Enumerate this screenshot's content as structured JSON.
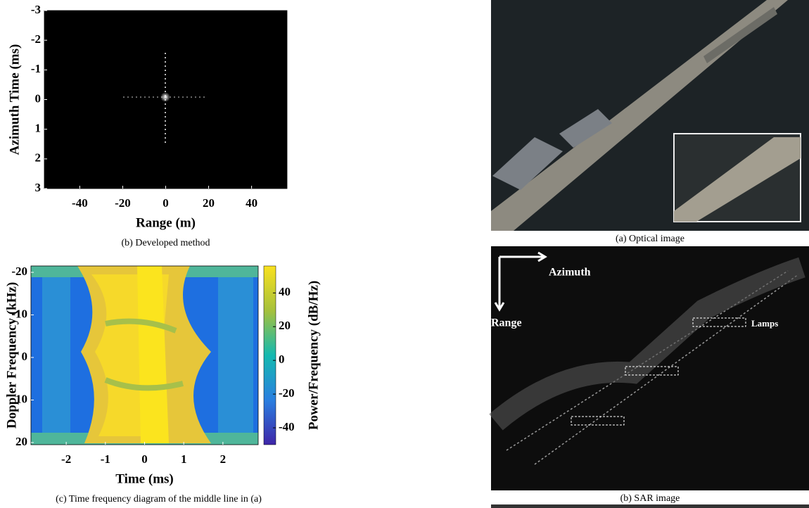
{
  "chart_data": [
    {
      "type": "image",
      "xlabel": "Range (m)",
      "ylabel": "Azimuth Time (ms)",
      "caption": "(b) Developed method",
      "xlim": [
        -56.5,
        56.5
      ],
      "xticks": [
        -40,
        -20,
        0,
        20,
        40
      ],
      "ylim": [
        -3,
        3
      ],
      "yticks": [
        -3,
        -2,
        -1,
        0,
        1,
        2,
        3
      ]
    },
    {
      "type": "heatmap",
      "xlabel": "Time (ms)",
      "ylabel": "Doppler Frequency (kHz)",
      "caption": "(c) Time frequency diagram of the middle line in (a)",
      "xlim": [
        -2.9,
        2.9
      ],
      "xticks": [
        -2,
        -1,
        0,
        1,
        2
      ],
      "ylim": [
        -21.5,
        20.5
      ],
      "yticks": [
        -20,
        -10,
        0,
        10,
        20
      ],
      "colorbar": {
        "label": "Power/Frequency (dB/Hz)",
        "lim": [
          -50,
          56
        ],
        "ticks": [
          -40,
          -20,
          0,
          20,
          40
        ]
      }
    }
  ],
  "images": [
    {
      "caption": "(a) Optical image"
    },
    {
      "caption": "(b) SAR image",
      "labels": [
        "Azimuth",
        "Range",
        "Lamps"
      ]
    }
  ]
}
